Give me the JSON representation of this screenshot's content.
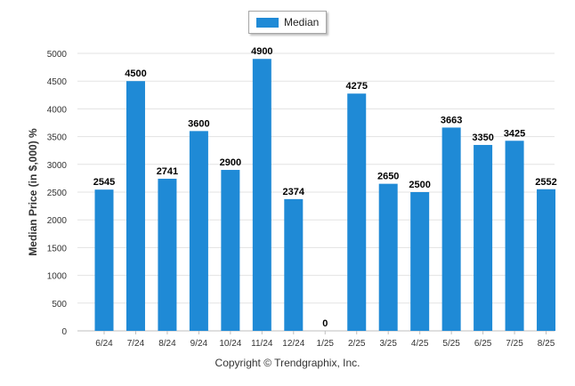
{
  "legend": {
    "label": "Median",
    "color": "#1f8ad6"
  },
  "footer": {
    "copyright": "Copyright © Trendgraphix, Inc."
  },
  "chart_data": {
    "type": "bar",
    "categories": [
      "6/24",
      "7/24",
      "8/24",
      "9/24",
      "10/24",
      "11/24",
      "12/24",
      "1/25",
      "2/25",
      "3/25",
      "4/25",
      "5/25",
      "6/25",
      "7/25",
      "8/25"
    ],
    "series": [
      {
        "name": "Median",
        "values": [
          2545,
          4500,
          2741,
          3600,
          2900,
          4900,
          2374,
          0,
          4275,
          2650,
          2500,
          3663,
          3350,
          3425,
          2552
        ]
      }
    ],
    "xlabel": "",
    "ylabel": "Median Price (in $,000) %",
    "ylim": [
      0,
      5000
    ],
    "yticks": [
      0,
      500,
      1000,
      1500,
      2000,
      2500,
      3000,
      3500,
      4000,
      4500,
      5000
    ],
    "grid": true,
    "legend_position": "top-center",
    "bar_color": "#1f8ad6"
  }
}
